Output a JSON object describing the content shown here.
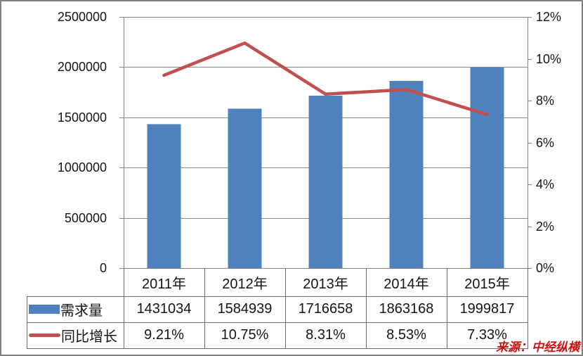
{
  "source_note": "来源：中经纵横",
  "colors": {
    "bar": "#4f81bd",
    "line": "#c0504d",
    "grid": "#898989",
    "axis": "#808080",
    "table_border": "#6b6b6b",
    "text": "#141414",
    "source": "#cc1111"
  },
  "chart_data": {
    "type": "bar+line combo with data table",
    "categories": [
      "2011年",
      "2012年",
      "2013年",
      "2014年",
      "2015年"
    ],
    "series": [
      {
        "name": "需求量",
        "type": "bar",
        "axis": "left",
        "values": [
          1431034,
          1584939,
          1716658,
          1863168,
          1999817
        ]
      },
      {
        "name": "同比增长",
        "type": "line",
        "axis": "right",
        "values": [
          9.21,
          10.75,
          8.31,
          8.53,
          7.33
        ],
        "display": [
          "9.21%",
          "10.75%",
          "8.31%",
          "8.53%",
          "7.33%"
        ]
      }
    ],
    "left_axis": {
      "min": 0,
      "max": 2500000,
      "step": 500000,
      "tick_labels": [
        "0",
        "500000",
        "1000000",
        "1500000",
        "2000000",
        "2500000"
      ]
    },
    "right_axis": {
      "min": 0,
      "max": 12,
      "step": 2,
      "tick_labels": [
        "0%",
        "2%",
        "4%",
        "6%",
        "8%",
        "10%",
        "12%"
      ]
    },
    "grid": true,
    "legend_position": "table-left"
  }
}
